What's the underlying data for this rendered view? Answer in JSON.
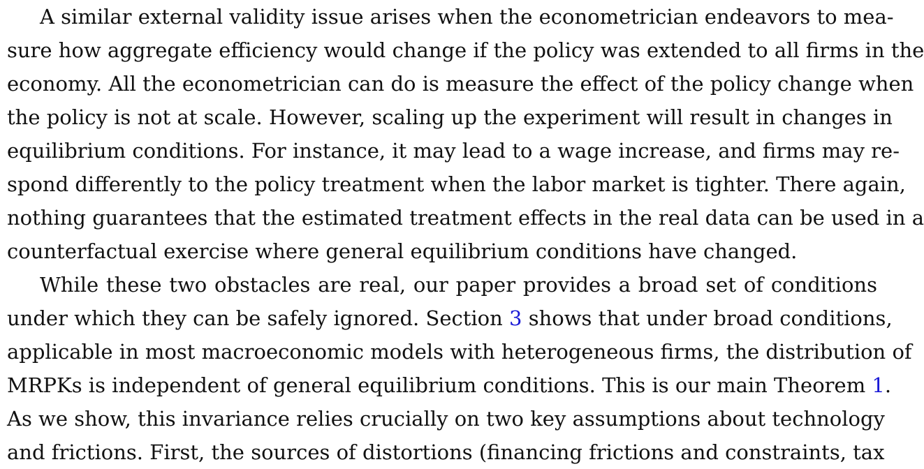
{
  "paragraph1": {
    "lines": [
      "A similar external validity issue arises when the econometrician endeavors to mea-",
      "sure how aggregate efficiency would change if the policy was extended to all firms in the",
      "economy. All the econometrician can do is measure the effect of the policy change when",
      "the policy is not at scale. However, scaling up the experiment will result in changes in",
      "equilibrium conditions. For instance, it may lead to a wage increase, and firms may re-",
      "spond differently to the policy treatment when the labor market is tighter. There again,",
      "nothing guarantees that the estimated treatment effects in the real data can be used in a",
      "counterfactual exercise where general equilibrium conditions have changed."
    ]
  },
  "paragraph2": {
    "line1": "While these two obstacles are real, our paper provides a broad set of conditions",
    "line2_before": "under which they can be safely ignored. Section ",
    "line2_ref": "3",
    "line2_after": " shows that under broad conditions,",
    "line3": "applicable in most macroeconomic models with heterogeneous firms, the distribution of",
    "line4_before": "MRPKs is independent of general equilibrium conditions. This is our main Theorem ",
    "line4_ref": "1",
    "line4_after": ".",
    "line5": "As we show, this invariance relies crucially on two key assumptions about technology",
    "line6": "and frictions. First, the sources of distortions (financing frictions and constraints, tax"
  }
}
